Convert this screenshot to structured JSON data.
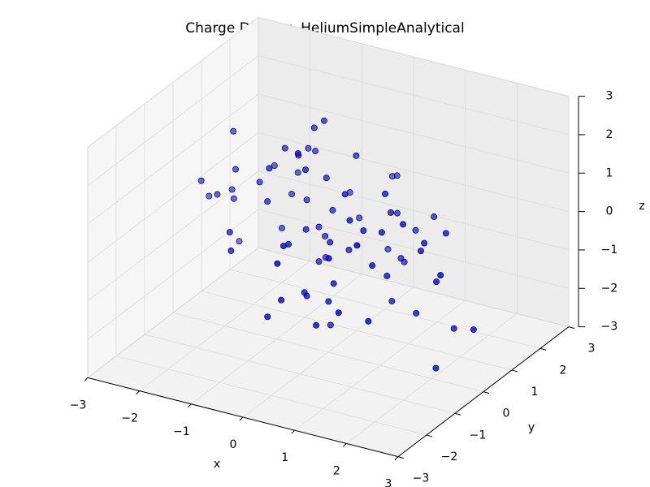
{
  "chart_data": {
    "type": "scatter3d",
    "title": "Charge Density, HeliumSimpleAnalytical",
    "xlabel": "x",
    "ylabel": "y",
    "zlabel": "z",
    "color": "#0000ff",
    "grid": true,
    "xlim": [
      -3,
      3
    ],
    "ylim": [
      -3,
      3
    ],
    "zlim": [
      -3,
      3
    ],
    "xticks": [
      {
        "value": -3,
        "label": "−3"
      },
      {
        "value": -2,
        "label": "−2"
      },
      {
        "value": -1,
        "label": "−1"
      },
      0,
      1,
      2,
      3
    ],
    "yticks": [
      {
        "value": -3,
        "label": "−3"
      },
      {
        "value": -2,
        "label": "−2"
      },
      {
        "value": -1,
        "label": "−1"
      },
      0,
      1,
      2,
      3
    ],
    "zticks": [
      {
        "value": -3,
        "label": "−3"
      },
      {
        "value": -2,
        "label": "−2"
      },
      {
        "value": -1,
        "label": "−1"
      },
      0,
      1,
      2,
      3
    ],
    "x": [
      0.2,
      -0.5,
      1.1,
      -1.3,
      0.7,
      -0.1,
      0.4,
      -0.8,
      1.6,
      -2.1,
      0.0,
      0.9,
      -0.3,
      1.3,
      -1.0,
      0.5,
      -1.7,
      2.2,
      -0.6,
      0.3,
      1.8,
      -2.6,
      0.8,
      -0.4,
      1.0,
      -1.2,
      0.1,
      2.0,
      -0.9,
      0.6,
      -1.5,
      1.4,
      -0.2,
      0.2,
      -2.3,
      1.7,
      -0.7,
      0.4,
      1.2,
      -1.9,
      0.0,
      -0.5,
      0.9,
      2.5,
      -1.1,
      0.3,
      -0.3,
      1.5,
      -2.8,
      0.7,
      -0.8,
      1.1,
      0.2,
      -1.4,
      2.3,
      -0.1,
      0.6,
      -2.0,
      1.9,
      -0.6,
      0.5,
      -1.6,
      1.0,
      -0.2,
      2.7,
      -2.4,
      0.8,
      -1.0,
      0.1,
      1.3,
      -0.4,
      -1.3,
      0.4,
      2.1,
      -0.9,
      0.7,
      -2.2,
      1.6,
      -0.3,
      0.0
    ],
    "y": [
      -0.3,
      0.8,
      0.2,
      -1.1,
      1.4,
      -0.6,
      0.0,
      1.0,
      -1.5,
      0.5,
      2.1,
      -0.4,
      0.7,
      -2.0,
      0.3,
      -0.9,
      1.2,
      -0.2,
      0.6,
      -1.3,
      0.1,
      1.6,
      -0.7,
      0.4,
      -1.8,
      0.9,
      -0.1,
      0.5,
      2.4,
      -0.5,
      1.1,
      -1.0,
      0.3,
      -2.5,
      0.8,
      0.0,
      -0.8,
      1.7,
      -0.3,
      0.2,
      -1.4,
      2.0,
      0.6,
      -0.6,
      1.3,
      -2.2,
      0.4,
      -0.1,
      0.9,
      -1.7,
      0.7,
      0.0,
      -1.2,
      1.5,
      -0.4,
      2.6,
      -0.9,
      0.3,
      -0.2,
      1.0,
      -2.7,
      0.5,
      1.9,
      -0.7,
      0.2,
      -0.1,
      1.1,
      -1.6,
      0.8,
      -0.3,
      0.4,
      1.3,
      -2.3,
      0.6,
      -0.5,
      1.8,
      0.1,
      -1.9,
      2.8,
      -0.8
    ],
    "z": [
      0.1,
      -0.6,
      0.9,
      0.3,
      -1.2,
      0.5,
      -0.2,
      1.4,
      -0.8,
      0.0,
      -1.5,
      0.7,
      0.2,
      -0.4,
      1.8,
      -1.0,
      0.6,
      -0.3,
      2.3,
      -0.7,
      0.4,
      -1.9,
      1.1,
      -0.1,
      0.8,
      0.2,
      -2.2,
      0.5,
      -0.5,
      1.6,
      -0.9,
      0.3,
      1.3,
      -0.6,
      0.0,
      -1.4,
      2.0,
      -0.2,
      0.7,
      1.0,
      0.6,
      -0.8,
      -1.7,
      0.2,
      1.2,
      -0.3,
      2.7,
      0.9,
      -0.4,
      -1.1,
      0.3,
      1.5,
      -0.7,
      0.8,
      -2.4,
      0.1,
      -0.5,
      1.9,
      0.4,
      -1.3,
      1.0,
      0.6,
      -0.2,
      2.5,
      -1.6,
      0.7,
      -0.9,
      0.2,
      1.7,
      -0.4,
      -1.0,
      0.5,
      1.2,
      -2.0,
      0.9,
      -0.6,
      0.3,
      1.4,
      -0.1,
      2.2
    ]
  }
}
